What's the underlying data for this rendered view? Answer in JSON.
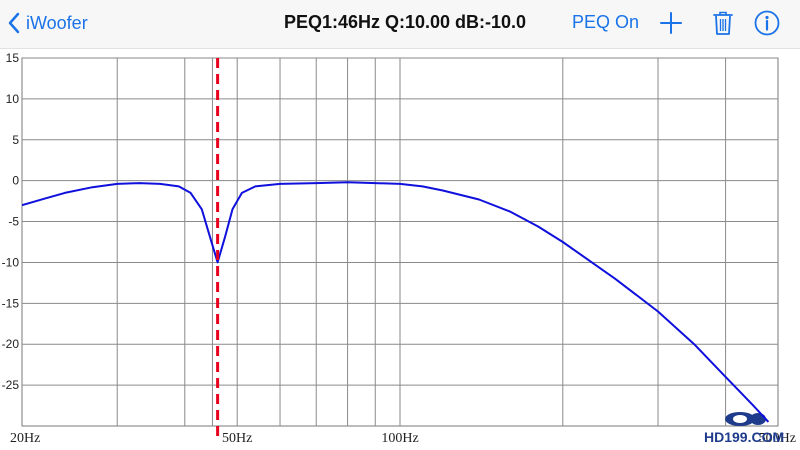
{
  "nav": {
    "back_label": "iWoofer",
    "title": "PEQ1:46Hz Q:10.00 dB:-10.0",
    "peq_toggle": "PEQ On",
    "icons": [
      "chevron-left-icon",
      "plus-icon",
      "trash-icon",
      "info-icon"
    ],
    "accent": "#1a73e8"
  },
  "chart_data": {
    "type": "line",
    "xscale": "log",
    "xlim": [
      20,
      500
    ],
    "ylim": [
      -30,
      15
    ],
    "yticks": [
      15,
      10,
      5,
      0,
      -5,
      -10,
      -15,
      -20,
      -25
    ],
    "xtick_labels": [
      {
        "x": 20,
        "label": "20Hz"
      },
      {
        "x": 50,
        "label": "50Hz"
      },
      {
        "x": 100,
        "label": "100Hz"
      },
      {
        "x": 500,
        "label": "500Hz"
      }
    ],
    "x_gridlines": [
      30,
      40,
      45,
      60,
      70,
      80,
      90,
      200,
      300,
      400
    ],
    "grid": true,
    "marker": {
      "x": 46,
      "color": "#e8001c",
      "style": "dashed"
    },
    "series": [
      {
        "color": "#1010dd",
        "points": [
          [
            20,
            -3.0
          ],
          [
            22,
            -2.2
          ],
          [
            24,
            -1.5
          ],
          [
            27,
            -0.8
          ],
          [
            30,
            -0.4
          ],
          [
            33,
            -0.3
          ],
          [
            36,
            -0.4
          ],
          [
            39,
            -0.7
          ],
          [
            41,
            -1.5
          ],
          [
            43,
            -3.5
          ],
          [
            44.5,
            -6.8
          ],
          [
            46,
            -10.0
          ],
          [
            47.5,
            -6.8
          ],
          [
            49,
            -3.5
          ],
          [
            51,
            -1.5
          ],
          [
            54,
            -0.7
          ],
          [
            60,
            -0.4
          ],
          [
            70,
            -0.3
          ],
          [
            80,
            -0.2
          ],
          [
            90,
            -0.3
          ],
          [
            100,
            -0.4
          ],
          [
            110,
            -0.7
          ],
          [
            120,
            -1.2
          ],
          [
            140,
            -2.3
          ],
          [
            160,
            -3.8
          ],
          [
            180,
            -5.6
          ],
          [
            200,
            -7.5
          ],
          [
            250,
            -12.0
          ],
          [
            300,
            -16.0
          ],
          [
            350,
            -20.0
          ],
          [
            400,
            -24.0
          ],
          [
            450,
            -27.5
          ],
          [
            480,
            -29.5
          ]
        ]
      }
    ]
  },
  "watermark": {
    "text": "HD199.COM"
  }
}
